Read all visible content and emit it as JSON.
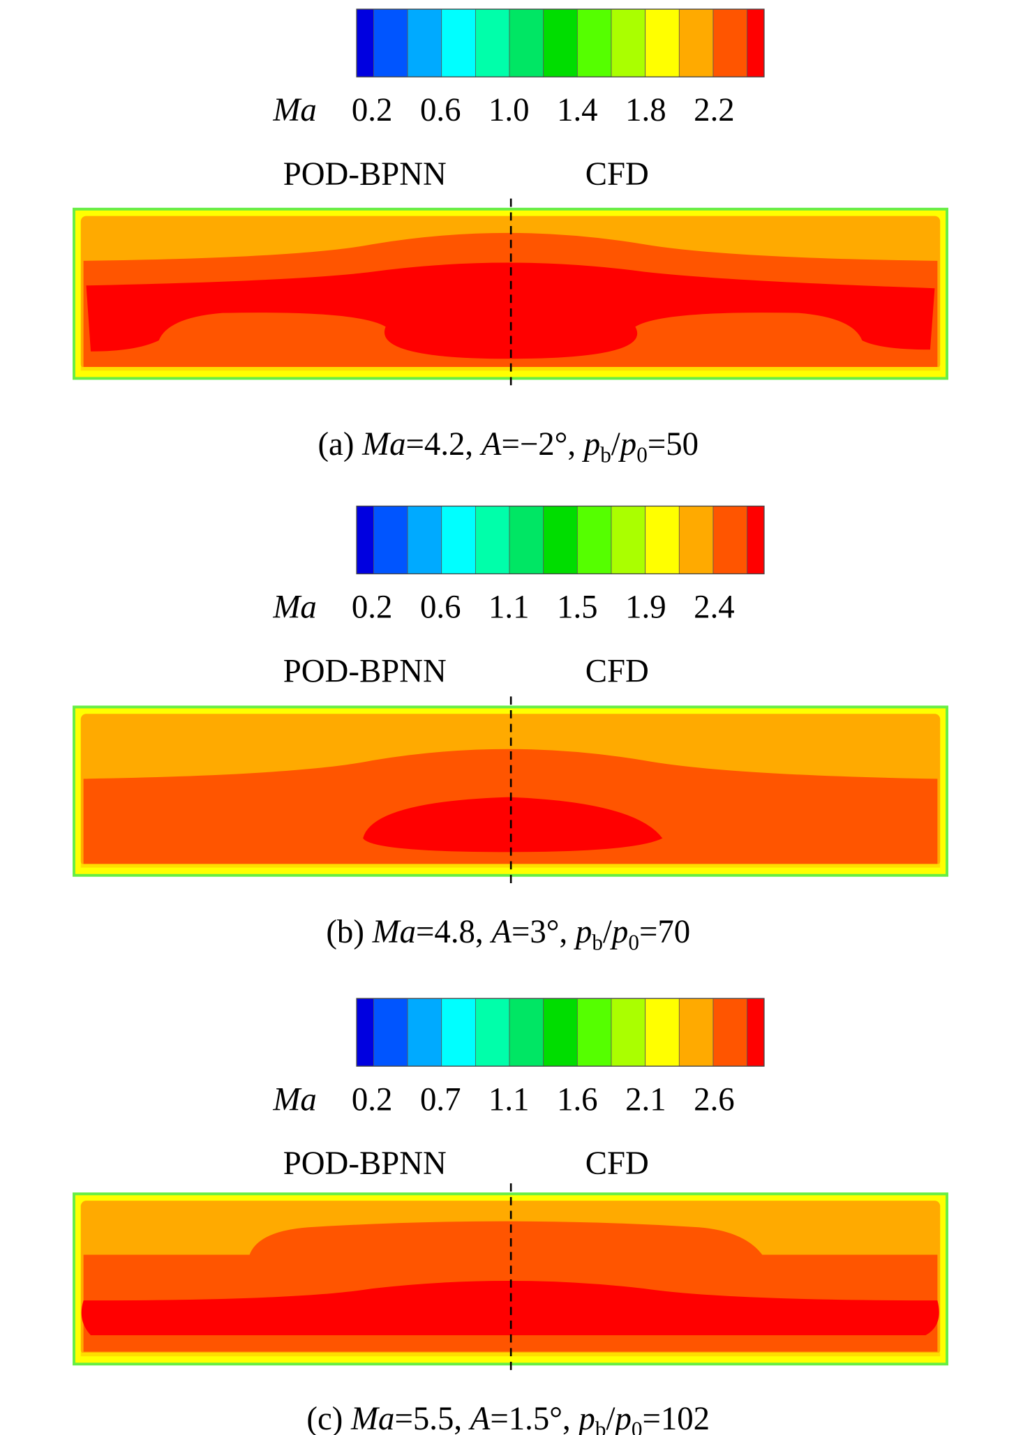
{
  "colorbar_colors": [
    "#0000e0",
    "#0055ff",
    "#00aaff",
    "#00ffff",
    "#00ffaa",
    "#00e664",
    "#00dd00",
    "#55ff00",
    "#aaff00",
    "#ffff00",
    "#ffaa00",
    "#ff5500",
    "#ff0000"
  ],
  "panels": [
    {
      "colorbar": {
        "variable": "Ma",
        "ticks": [
          "0.2",
          "0.6",
          "1.0",
          "1.4",
          "1.8",
          "2.2"
        ]
      },
      "left_label": "POD-BPNN",
      "right_label": "CFD",
      "caption": [
        {
          "text": "(a) "
        },
        {
          "text": "Ma",
          "style": "italic"
        },
        {
          "text": "=4.2, "
        },
        {
          "text": "A",
          "style": "italic"
        },
        {
          "text": "=−2°, "
        },
        {
          "text": "p",
          "style": "italic"
        },
        {
          "text": "b",
          "style": "sub"
        },
        {
          "text": "/"
        },
        {
          "text": "p",
          "style": "italic"
        },
        {
          "text": "0",
          "style": "sub"
        },
        {
          "text": "=50"
        }
      ]
    },
    {
      "colorbar": {
        "variable": "Ma",
        "ticks": [
          "0.2",
          "0.6",
          "1.1",
          "1.5",
          "1.9",
          "2.4"
        ]
      },
      "left_label": "POD-BPNN",
      "right_label": "CFD",
      "caption": [
        {
          "text": "(b) "
        },
        {
          "text": "Ma",
          "style": "italic"
        },
        {
          "text": "=4.8, "
        },
        {
          "text": "A",
          "style": "italic"
        },
        {
          "text": "=3°, "
        },
        {
          "text": "p",
          "style": "italic"
        },
        {
          "text": "b",
          "style": "sub"
        },
        {
          "text": "/"
        },
        {
          "text": "p",
          "style": "italic"
        },
        {
          "text": "0",
          "style": "sub"
        },
        {
          "text": "=70"
        }
      ]
    },
    {
      "colorbar": {
        "variable": "Ma",
        "ticks": [
          "0.2",
          "0.7",
          "1.1",
          "1.6",
          "2.1",
          "2.6"
        ]
      },
      "left_label": "POD-BPNN",
      "right_label": "CFD",
      "caption": [
        {
          "text": "(c) "
        },
        {
          "text": "Ma",
          "style": "italic"
        },
        {
          "text": "=5.5, "
        },
        {
          "text": "A",
          "style": "italic"
        },
        {
          "text": "=1.5°, "
        },
        {
          "text": "p",
          "style": "italic"
        },
        {
          "text": "b",
          "style": "sub"
        },
        {
          "text": "/"
        },
        {
          "text": "p",
          "style": "italic"
        },
        {
          "text": "0",
          "style": "sub"
        },
        {
          "text": "=102"
        }
      ]
    }
  ]
}
